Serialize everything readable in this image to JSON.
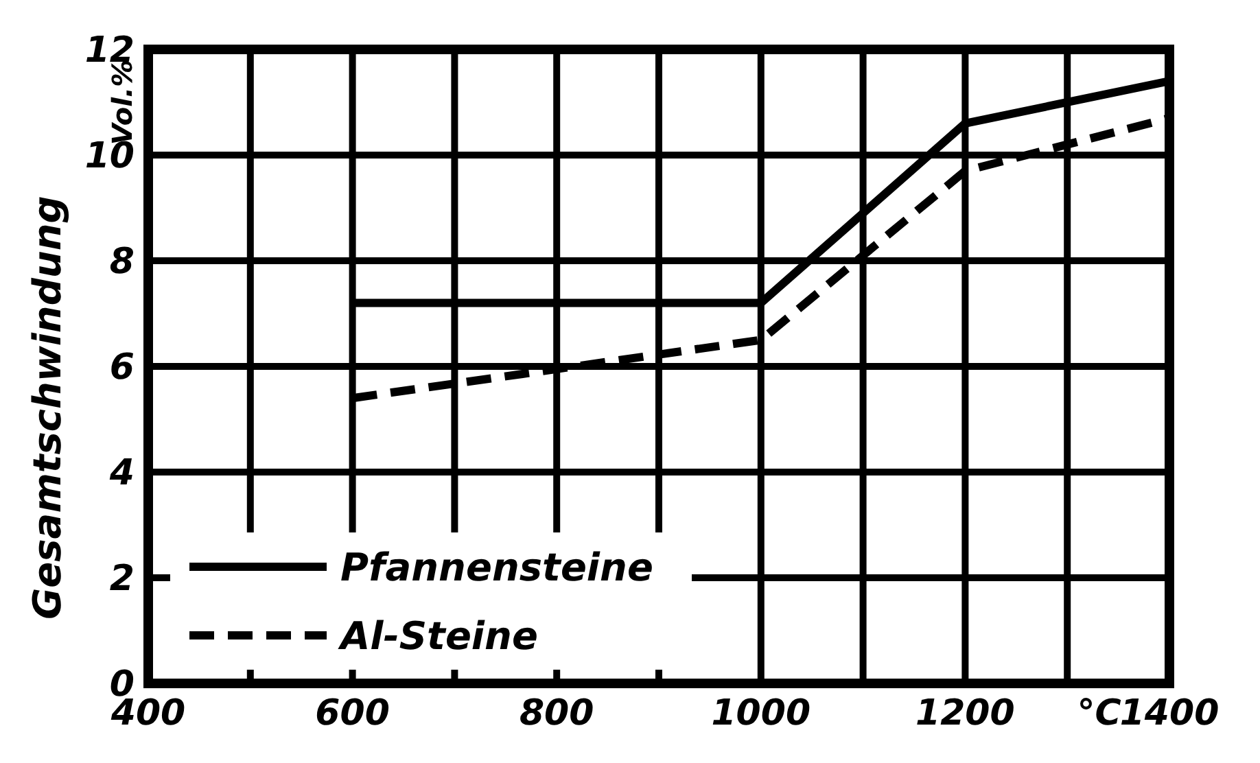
{
  "chart_data": {
    "type": "line",
    "xlabel": "°C",
    "ylabel": "Gesamtschwindung",
    "annotations": [
      "Vol.%"
    ],
    "xlim": [
      400,
      1400
    ],
    "ylim": [
      0,
      12
    ],
    "xticks": [
      400,
      {
        "value": 500,
        "label": null
      },
      600,
      {
        "value": 700,
        "label": null
      },
      800,
      {
        "value": 900,
        "label": null
      },
      1000,
      {
        "value": 1100,
        "label": null
      },
      1200,
      {
        "value": 1300,
        "label": null
      },
      1400
    ],
    "yticks": [
      0,
      2,
      4,
      6,
      8,
      10,
      12
    ],
    "grid": true,
    "legend": "bottom left",
    "series": [
      {
        "name": "Pfannensteine",
        "color": "#000000",
        "line_style": "solid",
        "x": [
          600,
          1000,
          1200,
          1400
        ],
        "values": [
          7.2,
          7.2,
          10.6,
          11.4
        ]
      },
      {
        "name": "Al-Steine",
        "color": "#000000",
        "line_style": "dashed",
        "x": [
          600,
          1000,
          1200,
          1400
        ],
        "values": [
          5.4,
          6.5,
          9.7,
          10.7
        ]
      }
    ]
  }
}
